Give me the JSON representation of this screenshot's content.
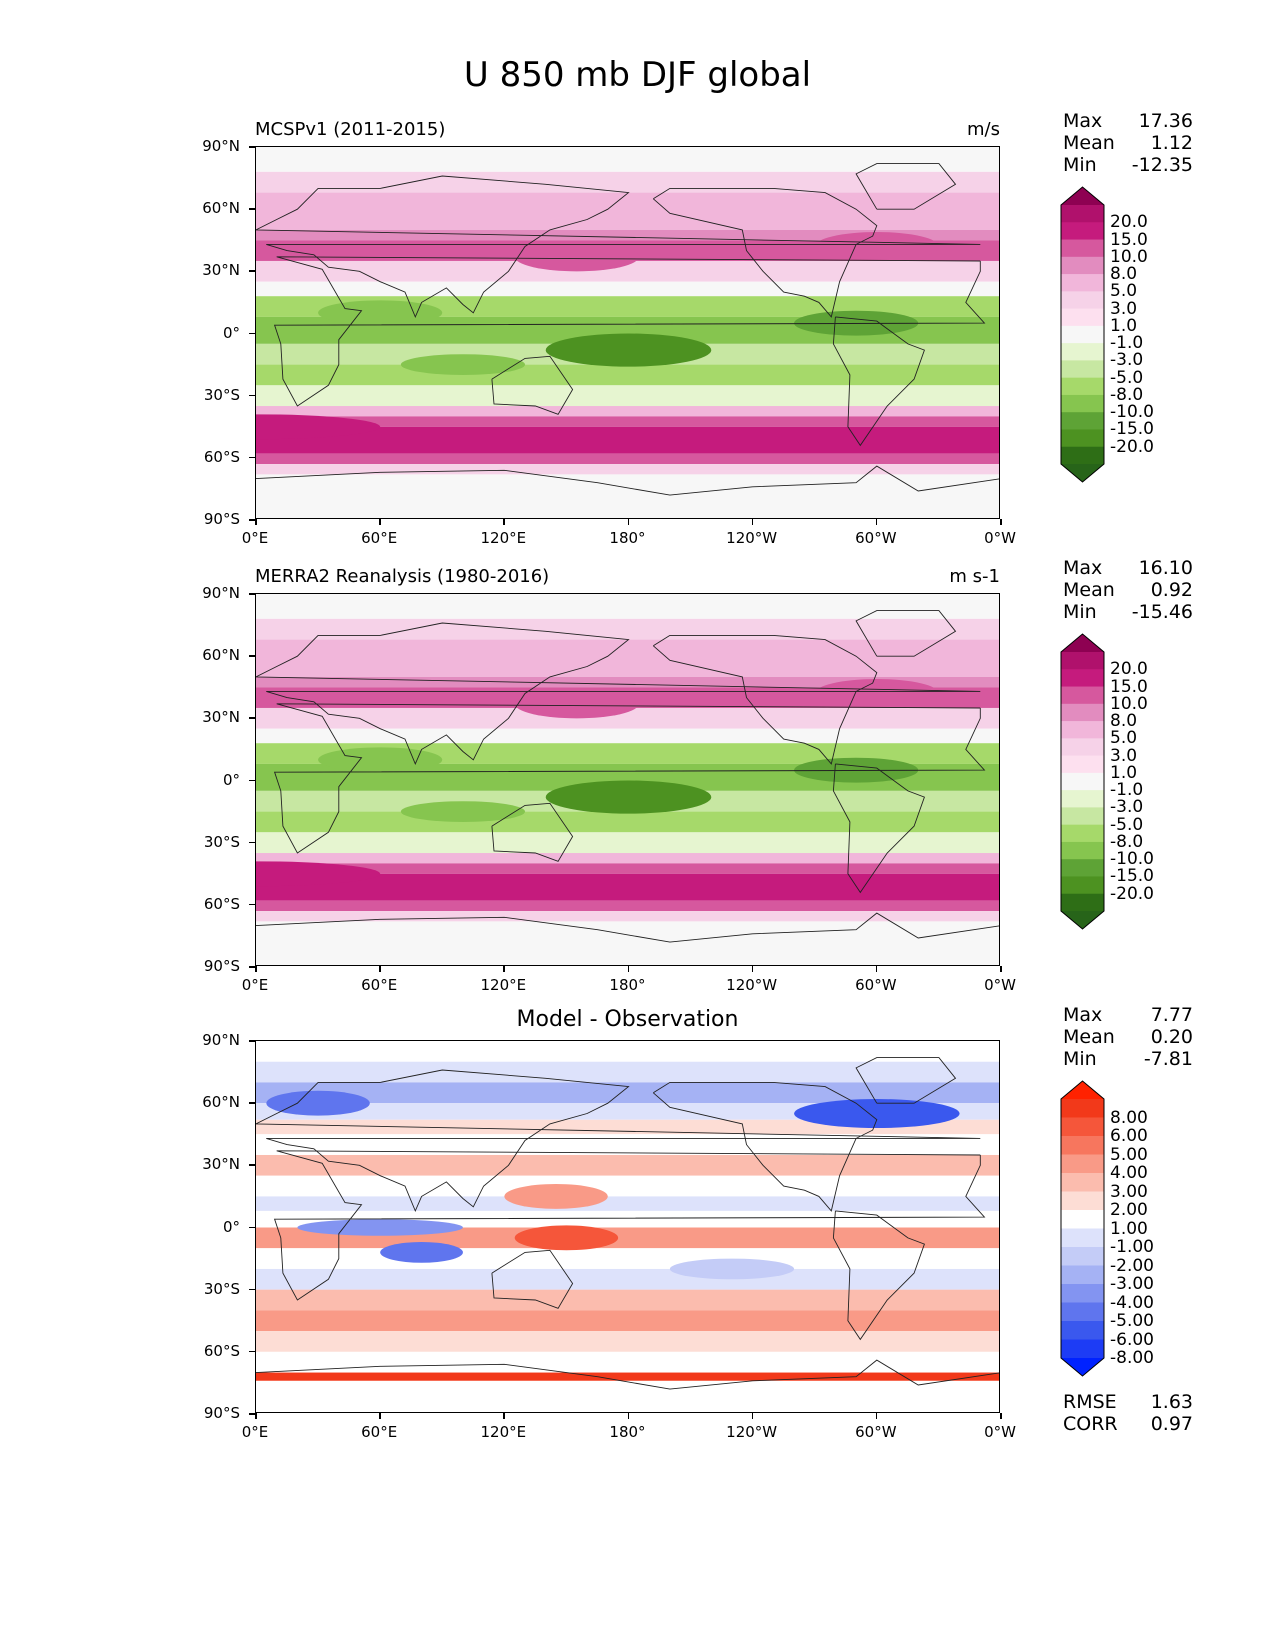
{
  "figure_title": "U 850 mb DJF global",
  "lat_labels": [
    "90°N",
    "60°N",
    "30°N",
    "0°",
    "30°S",
    "60°S",
    "90°S"
  ],
  "lon_labels": [
    "0°E",
    "60°E",
    "120°E",
    "180°",
    "120°W",
    "60°W",
    "0°W"
  ],
  "panels": [
    {
      "title_left": "MCSPv1 (2011-2015)",
      "title_right": "m/s",
      "title_center": "",
      "stats": [
        {
          "label": "Max",
          "value": "17.36"
        },
        {
          "label": "Mean",
          "value": "1.12"
        },
        {
          "label": "Min",
          "value": "-12.35"
        }
      ],
      "extra_stats": [],
      "colorbar": {
        "labels": [
          "20.0",
          "15.0",
          "10.0",
          "8.0",
          "5.0",
          "3.0",
          "1.0",
          "-1.0",
          "-3.0",
          "-5.0",
          "-8.0",
          "-10.0",
          "-15.0",
          "-20.0"
        ],
        "colors": [
          "#8e0152",
          "#b0116c",
          "#c51b7d",
          "#d6589e",
          "#e28cbf",
          "#f1b6da",
          "#f6d2e8",
          "#fde0ef",
          "#f7f7f7",
          "#e6f5d0",
          "#c7e7a2",
          "#a6d96a",
          "#86c54f",
          "#5ea336",
          "#4d9221",
          "#2e6e16",
          "#276419"
        ]
      }
    },
    {
      "title_left": "MERRA2 Reanalysis (1980-2016)",
      "title_right": "m s-1",
      "title_center": "",
      "stats": [
        {
          "label": "Max",
          "value": "16.10"
        },
        {
          "label": "Mean",
          "value": "0.92"
        },
        {
          "label": "Min",
          "value": "-15.46"
        }
      ],
      "extra_stats": [],
      "colorbar": {
        "labels": [
          "20.0",
          "15.0",
          "10.0",
          "8.0",
          "5.0",
          "3.0",
          "1.0",
          "-1.0",
          "-3.0",
          "-5.0",
          "-8.0",
          "-10.0",
          "-15.0",
          "-20.0"
        ],
        "colors": [
          "#8e0152",
          "#b0116c",
          "#c51b7d",
          "#d6589e",
          "#e28cbf",
          "#f1b6da",
          "#f6d2e8",
          "#fde0ef",
          "#f7f7f7",
          "#e6f5d0",
          "#c7e7a2",
          "#a6d96a",
          "#86c54f",
          "#5ea336",
          "#4d9221",
          "#2e6e16",
          "#276419"
        ]
      }
    },
    {
      "title_left": "",
      "title_right": "",
      "title_center": "Model - Observation",
      "stats": [
        {
          "label": "Max",
          "value": "7.77"
        },
        {
          "label": "Mean",
          "value": "0.20"
        },
        {
          "label": "Min",
          "value": "-7.81"
        }
      ],
      "extra_stats": [
        {
          "label": "RMSE",
          "value": "1.63"
        },
        {
          "label": "CORR",
          "value": "0.97"
        }
      ],
      "colorbar": {
        "labels": [
          "8.00",
          "6.00",
          "5.00",
          "4.00",
          "3.00",
          "2.00",
          "1.00",
          "-1.00",
          "-2.00",
          "-3.00",
          "-4.00",
          "-5.00",
          "-6.00",
          "-8.00"
        ],
        "colors": [
          "#ff2200",
          "#f2391a",
          "#f5563a",
          "#f7765e",
          "#f99a87",
          "#fbbcae",
          "#fdddd5",
          "#ffffff",
          "#dde2fb",
          "#c4ccf7",
          "#a5b2f4",
          "#8394f1",
          "#5f75ee",
          "#3a58ee",
          "#1d3cf5",
          "#0022ff"
        ]
      }
    }
  ]
}
